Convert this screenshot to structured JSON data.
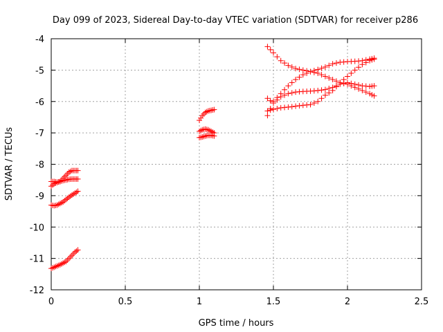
{
  "chart_data": {
    "type": "scatter",
    "title": "Day 099 of 2023, Sidereal Day-to-day VTEC variation (SDTVAR) for receiver p286",
    "xlabel": "GPS time / hours",
    "ylabel": "SDTVAR / TECUs",
    "xlim": [
      0,
      2.5
    ],
    "ylim": [
      -12,
      -4
    ],
    "xticks": [
      "0",
      "0.5",
      "1",
      "1.5",
      "2",
      "2.5"
    ],
    "yticks": [
      "-4",
      "-5",
      "-6",
      "-7",
      "-8",
      "-9",
      "-10",
      "-11",
      "-12"
    ],
    "grid": true,
    "marker": "+",
    "color": "#ff0000",
    "series": [
      {
        "x": [
          0.0,
          0.02,
          0.04,
          0.06,
          0.08,
          0.1,
          0.12,
          0.14,
          0.16,
          0.18
        ],
        "y": [
          -8.7,
          -8.62,
          -8.58,
          -8.55,
          -8.45,
          -8.35,
          -8.25,
          -8.2,
          -8.2,
          -8.2
        ]
      },
      {
        "x": [
          0.0,
          0.02,
          0.04,
          0.06,
          0.08,
          0.1,
          0.12,
          0.14,
          0.16,
          0.18
        ],
        "y": [
          -8.55,
          -8.55,
          -8.57,
          -8.55,
          -8.52,
          -8.5,
          -8.48,
          -8.47,
          -8.47,
          -8.47
        ]
      },
      {
        "x": [
          0.0,
          0.02,
          0.04,
          0.06,
          0.08,
          0.1,
          0.12,
          0.14,
          0.16,
          0.18
        ],
        "y": [
          -9.3,
          -9.32,
          -9.3,
          -9.25,
          -9.2,
          -9.12,
          -9.05,
          -8.98,
          -8.92,
          -8.86
        ]
      },
      {
        "x": [
          0.0,
          0.02,
          0.04,
          0.06,
          0.08,
          0.1,
          0.12,
          0.14,
          0.16,
          0.18
        ],
        "y": [
          -11.32,
          -11.28,
          -11.24,
          -11.2,
          -11.15,
          -11.1,
          -11.0,
          -10.9,
          -10.8,
          -10.73
        ]
      },
      {
        "x": [
          1.0,
          1.02,
          1.04,
          1.06,
          1.08,
          1.1
        ],
        "y": [
          -6.6,
          -6.45,
          -6.35,
          -6.3,
          -6.28,
          -6.26
        ]
      },
      {
        "x": [
          1.0,
          1.02,
          1.04,
          1.06,
          1.08,
          1.1
        ],
        "y": [
          -6.95,
          -6.9,
          -6.88,
          -6.9,
          -6.95,
          -7.0
        ]
      },
      {
        "x": [
          1.0,
          1.02,
          1.04,
          1.06,
          1.08,
          1.1
        ],
        "y": [
          -7.15,
          -7.13,
          -7.1,
          -7.08,
          -7.08,
          -7.1
        ]
      },
      {
        "x": [
          1.46,
          1.5,
          1.55,
          1.6,
          1.65,
          1.7,
          1.75,
          1.8,
          1.85,
          1.9,
          1.95,
          2.0,
          2.05,
          2.1,
          2.15,
          2.18
        ],
        "y": [
          -4.25,
          -4.45,
          -4.7,
          -4.85,
          -4.95,
          -5.0,
          -5.05,
          -5.1,
          -5.2,
          -5.3,
          -5.4,
          -5.45,
          -5.55,
          -5.65,
          -5.75,
          -5.82
        ]
      },
      {
        "x": [
          1.46,
          1.5,
          1.55,
          1.6,
          1.65,
          1.7,
          1.75,
          1.8,
          1.85,
          1.9,
          1.95,
          2.0,
          2.05,
          2.1,
          2.15,
          2.18
        ],
        "y": [
          -6.45,
          -6.0,
          -5.75,
          -5.5,
          -5.3,
          -5.15,
          -5.05,
          -4.98,
          -4.9,
          -4.8,
          -4.75,
          -4.73,
          -4.72,
          -4.7,
          -4.65,
          -4.62
        ]
      },
      {
        "x": [
          1.46,
          1.5,
          1.55,
          1.6,
          1.65,
          1.7,
          1.75,
          1.8,
          1.85,
          1.9,
          1.95,
          2.0,
          2.05,
          2.1,
          2.15,
          2.18
        ],
        "y": [
          -5.9,
          -6.05,
          -5.85,
          -5.75,
          -5.7,
          -5.68,
          -5.67,
          -5.65,
          -5.62,
          -5.55,
          -5.45,
          -5.4,
          -5.45,
          -5.5,
          -5.52,
          -5.5
        ]
      },
      {
        "x": [
          1.46,
          1.5,
          1.55,
          1.6,
          1.65,
          1.7,
          1.75,
          1.8,
          1.85,
          1.9,
          1.95,
          2.0,
          2.05,
          2.1,
          2.15,
          2.18
        ],
        "y": [
          -6.3,
          -6.25,
          -6.2,
          -6.18,
          -6.15,
          -6.12,
          -6.1,
          -6.0,
          -5.8,
          -5.65,
          -5.4,
          -5.2,
          -5.0,
          -4.82,
          -4.7,
          -4.65
        ]
      }
    ]
  }
}
